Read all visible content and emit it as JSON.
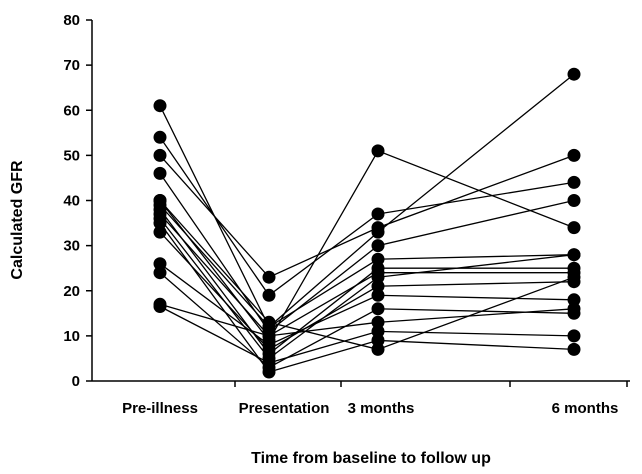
{
  "chart_data": {
    "type": "line",
    "xlabel": "Time from baseline to follow up",
    "ylabel": "Calculated GFR",
    "categories": [
      "Pre-illness",
      "Presentation",
      "3 months",
      "6 months"
    ],
    "ylim": [
      0,
      80
    ],
    "yticks": [
      0,
      10,
      20,
      30,
      40,
      50,
      60,
      70,
      80
    ],
    "grid": false,
    "legend": "none",
    "marker": "filled-circle",
    "color": "#000000",
    "series": [
      {
        "values": [
          61,
          12,
          33,
          68
        ]
      },
      {
        "values": [
          54,
          19,
          37,
          44
        ]
      },
      {
        "values": [
          50,
          23,
          34,
          50
        ]
      },
      {
        "values": [
          46,
          11,
          30,
          40
        ]
      },
      {
        "values": [
          40,
          9,
          51,
          34
        ]
      },
      {
        "values": [
          39,
          12,
          27,
          28
        ]
      },
      {
        "values": [
          38,
          6,
          25,
          25
        ]
      },
      {
        "values": [
          37,
          10,
          24,
          24
        ]
      },
      {
        "values": [
          36,
          5,
          23,
          28
        ]
      },
      {
        "values": [
          33,
          7,
          21,
          22
        ]
      },
      {
        "values": [
          26,
          8,
          19,
          18
        ]
      },
      {
        "values": [
          24,
          3,
          16,
          15
        ]
      },
      {
        "values": [
          17,
          10,
          13,
          16
        ]
      },
      {
        "values": [
          16.5,
          4,
          11,
          10
        ]
      },
      {
        "values": [
          35,
          2,
          9,
          7
        ]
      },
      {
        "values": [
          40,
          13,
          7,
          23
        ]
      }
    ]
  }
}
